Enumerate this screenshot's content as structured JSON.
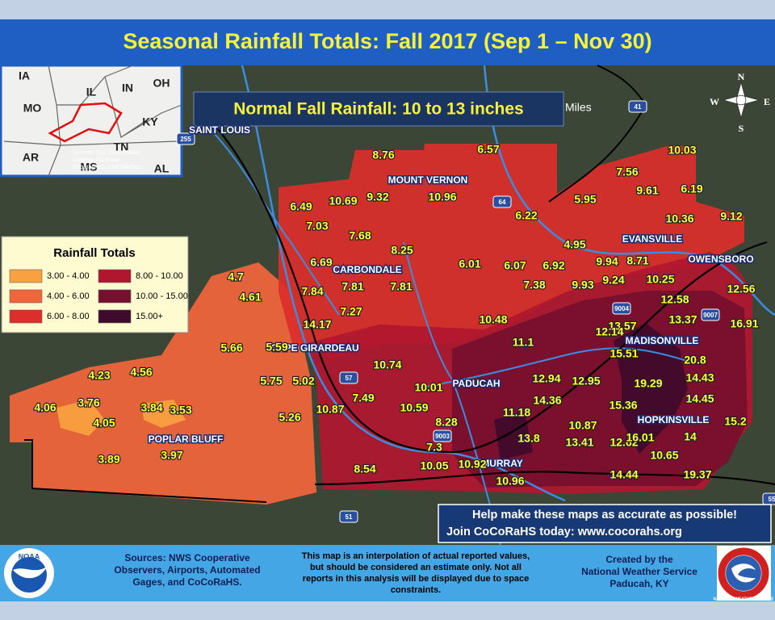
{
  "title": "Seasonal Rainfall Totals: Fall 2017 (Sep 1 – Nov 30)",
  "normal_box": "Normal Fall Rainfall: 10 to 13 inches",
  "inset": {
    "states": [
      "IA",
      "IL",
      "IN",
      "OH",
      "MO",
      "KY",
      "AR",
      "TN",
      "MS",
      "AL"
    ],
    "credit": [
      "Sources: Esri, DigitalGlobe,",
      "GeoEye, Earthstar",
      "Geographics, CNES/Airbus"
    ]
  },
  "scale_label": "Miles",
  "compass": {
    "n": "N",
    "s": "S",
    "e": "E",
    "w": "W"
  },
  "legend": {
    "title": "Rainfall Totals",
    "items": [
      {
        "label": "3.00 - 4.00",
        "color": "#f9a040"
      },
      {
        "label": "4.00 - 6.00",
        "color": "#f2653a"
      },
      {
        "label": "6.00 - 8.00",
        "color": "#dc2e2a"
      },
      {
        "label": "8.00 - 10.00",
        "color": "#b0172e"
      },
      {
        "label": "10.00 - 15.00",
        "color": "#76102e"
      },
      {
        "label": "15.00+",
        "color": "#3f0a2c"
      }
    ]
  },
  "cities": [
    "SAINT LOUIS",
    "MOUNT VERNON",
    "EVANSVILLE",
    "OWENSBORO",
    "CARBONDALE",
    "CAPE GIRARDEAU",
    "PADUCAH",
    "MADISONVILLE",
    "HOPKINSVILLE",
    "POPLAR BLUFF",
    "MURRAY"
  ],
  "roads": [
    "64",
    "57",
    "41",
    "9004",
    "9007",
    "9003",
    "51",
    "255",
    "55"
  ],
  "values": [
    "8.76",
    "6.57",
    "10.03",
    "7.56",
    "9.61",
    "6.19",
    "10.69",
    "9.32",
    "10.96",
    "5.95",
    "6.49",
    "6.22",
    "10.36",
    "9.12",
    "7.03",
    "7.68",
    "4.95",
    "8.25",
    "6.69",
    "6.01",
    "6.07",
    "6.92",
    "9.94",
    "8.71",
    "7.81",
    "7.81",
    "7.84",
    "7.38",
    "9.93",
    "9.24",
    "10.25",
    "12.56",
    "4.7",
    "4.61",
    "12.58",
    "7.27",
    "14.17",
    "10.48",
    "13.57",
    "13.37",
    "16.91",
    "5.66",
    "5.59",
    "11.1",
    "12.14",
    "15.51",
    "20.8",
    "10.74",
    "4.23",
    "4.56",
    "5.75",
    "5.02",
    "10.01",
    "12.94",
    "12.95",
    "19.29",
    "14.43",
    "7.49",
    "14.36",
    "15.36",
    "14.45",
    "4.06",
    "3.76",
    "3.84",
    "3.53",
    "10.87",
    "10.59",
    "11.18",
    "4.05",
    "5.26",
    "8.28",
    "10.87",
    "15.2",
    "3.89",
    "13.8",
    "13.41",
    "12.62",
    "16.01",
    "14",
    "3.97",
    "7.3",
    "10.05",
    "10.92",
    "10.65",
    "8.54",
    "10.96",
    "14.44",
    "19.37"
  ],
  "banner": [
    "Help make these maps as accurate as possible!",
    "Join CoCoRaHS today: www.cocorahs.org"
  ],
  "footer": {
    "sources": [
      "Sources: NWS Cooperative",
      "Observers, Airports, Automated",
      "Gages, and CoCoRaHS."
    ],
    "disclaimer": [
      "This map is an interpolation of actual reported values,",
      "but should be considered an estimate only. Not all",
      "reports in this analysis will be displayed due to space",
      "constraints."
    ],
    "credit": [
      "Created by the",
      "National Weather Service",
      "Paducah, KY"
    ]
  },
  "logos": {
    "noaa": "NOAA",
    "nws": "NATIONAL WEATHER SERVICE"
  }
}
